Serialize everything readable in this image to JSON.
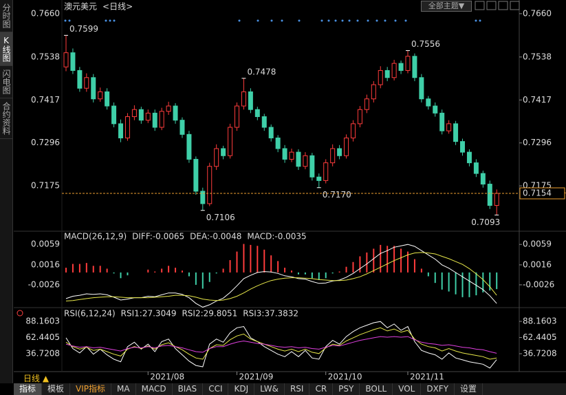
{
  "ui": {
    "sidebar": [
      "分时图",
      "K线图",
      "闪电图",
      "合约资料"
    ],
    "theme_button": "全部主题▼",
    "period_label": "日线 ▲",
    "tabs": [
      "指标",
      "模板",
      "VIP指标",
      "MA",
      "MACD",
      "BIAS",
      "CCI",
      "KDJ",
      "LW&",
      "RSI",
      "CR",
      "PSY",
      "BOLL",
      "VOL",
      "DXFY",
      "设置"
    ]
  },
  "chart_data": [
    {
      "type": "candlestick",
      "title": "澳元美元",
      "subtitle": "<日线>",
      "up_color": "#ff3c3c",
      "down_color": "#3fcfa8",
      "last_color": "#f0a030",
      "open": [
        0.751,
        0.755,
        0.75,
        0.745,
        0.748,
        0.742,
        0.744,
        0.74,
        0.735,
        0.731,
        0.737,
        0.739,
        0.736,
        0.738,
        0.734,
        0.7385,
        0.74,
        0.736,
        0.732,
        0.725,
        0.716,
        0.7125,
        0.723,
        0.728,
        0.726,
        0.734,
        0.74,
        0.744,
        0.739,
        0.737,
        0.734,
        0.731,
        0.728,
        0.725,
        0.727,
        0.723,
        0.726,
        0.72,
        0.719,
        0.724,
        0.728,
        0.726,
        0.731,
        0.735,
        0.739,
        0.742,
        0.746,
        0.75,
        0.748,
        0.752,
        0.75,
        0.754,
        0.748,
        0.742,
        0.74,
        0.738,
        0.733,
        0.735,
        0.73,
        0.727,
        0.724,
        0.721,
        0.718,
        0.712
      ],
      "high": [
        0.7599,
        0.7562,
        0.751,
        0.7492,
        0.749,
        0.7452,
        0.745,
        0.741,
        0.7362,
        0.738,
        0.7402,
        0.7398,
        0.739,
        0.739,
        0.7395,
        0.7412,
        0.7408,
        0.7368,
        0.733,
        0.7258,
        0.717,
        0.724,
        0.7292,
        0.7288,
        0.735,
        0.741,
        0.7478,
        0.745,
        0.7398,
        0.7378,
        0.7348,
        0.7318,
        0.729,
        0.728,
        0.7278,
        0.727,
        0.7268,
        0.721,
        0.725,
        0.7292,
        0.729,
        0.732,
        0.736,
        0.74,
        0.7432,
        0.747,
        0.7512,
        0.751,
        0.753,
        0.7528,
        0.7556,
        0.7548,
        0.749,
        0.7428,
        0.741,
        0.739,
        0.736,
        0.7358,
        0.7308,
        0.7278,
        0.725,
        0.7218,
        0.719,
        0.7165
      ],
      "low": [
        0.7498,
        0.749,
        0.744,
        0.744,
        0.741,
        0.7412,
        0.739,
        0.734,
        0.7298,
        0.7302,
        0.736,
        0.735,
        0.7352,
        0.733,
        0.7332,
        0.7375,
        0.735,
        0.731,
        0.724,
        0.715,
        0.7106,
        0.7118,
        0.722,
        0.725,
        0.7252,
        0.733,
        0.739,
        0.738,
        0.736,
        0.733,
        0.73,
        0.727,
        0.724,
        0.7242,
        0.722,
        0.7222,
        0.719,
        0.717,
        0.7182,
        0.723,
        0.725,
        0.7252,
        0.73,
        0.734,
        0.738,
        0.741,
        0.745,
        0.747,
        0.7472,
        0.749,
        0.7492,
        0.747,
        0.741,
        0.739,
        0.737,
        0.732,
        0.7322,
        0.729,
        0.726,
        0.723,
        0.72,
        0.717,
        0.711,
        0.7093
      ],
      "close": [
        0.755,
        0.75,
        0.745,
        0.748,
        0.742,
        0.744,
        0.74,
        0.735,
        0.731,
        0.737,
        0.739,
        0.736,
        0.738,
        0.734,
        0.7385,
        0.74,
        0.736,
        0.732,
        0.725,
        0.716,
        0.7125,
        0.723,
        0.728,
        0.726,
        0.734,
        0.74,
        0.744,
        0.739,
        0.737,
        0.734,
        0.731,
        0.728,
        0.725,
        0.727,
        0.723,
        0.726,
        0.72,
        0.719,
        0.724,
        0.728,
        0.726,
        0.731,
        0.735,
        0.739,
        0.742,
        0.746,
        0.75,
        0.748,
        0.752,
        0.75,
        0.754,
        0.748,
        0.742,
        0.74,
        0.738,
        0.733,
        0.735,
        0.73,
        0.727,
        0.724,
        0.721,
        0.718,
        0.712,
        0.7154
      ],
      "annotations": [
        {
          "index": 0,
          "at": "high",
          "label": "0.7599"
        },
        {
          "index": 26,
          "at": "high",
          "label": "0.7478"
        },
        {
          "index": 50,
          "at": "high",
          "label": "0.7556"
        },
        {
          "index": 20,
          "at": "low",
          "label": "0.7106"
        },
        {
          "index": 37,
          "at": "low",
          "label": "0.7170"
        },
        {
          "index": 63,
          "at": "low",
          "label": "0.7093"
        }
      ],
      "ylim": [
        0.7059,
        0.7683
      ],
      "yticks": [
        {
          "value": 0.766,
          "label": "0.7660"
        },
        0.7538,
        0.7417,
        0.7296,
        0.7175
      ]
    },
    {
      "type": "macd",
      "title": "MACD(26,12,9)",
      "ylim": [
        -0.0071,
        0.0081
      ],
      "yticks": [
        0.0059,
        0.0016,
        -0.0026
      ],
      "series": [
        {
          "name": "DIFF:-0.0065",
          "color": "#ffffff",
          "kind": "line",
          "values": [
            -0.0055,
            -0.005,
            -0.0048,
            -0.0045,
            -0.0046,
            -0.0045,
            -0.0047,
            -0.0052,
            -0.0058,
            -0.0056,
            -0.0053,
            -0.0053,
            -0.005,
            -0.0051,
            -0.0047,
            -0.0043,
            -0.0043,
            -0.0046,
            -0.0053,
            -0.0065,
            -0.0073,
            -0.0068,
            -0.006,
            -0.0054,
            -0.0042,
            -0.0028,
            -0.0013,
            -0.0006,
            0.0,
            0.0002,
            0.0001,
            -0.0002,
            -0.0007,
            -0.0009,
            -0.0013,
            -0.0014,
            -0.0019,
            -0.0023,
            -0.0022,
            -0.0018,
            -0.0016,
            -0.001,
            -0.0002,
            0.0008,
            0.0018,
            0.0029,
            0.004,
            0.0046,
            0.0053,
            0.0056,
            0.0059,
            0.0055,
            0.0046,
            0.0037,
            0.0028,
            0.0016,
            0.0009,
            0.0,
            -0.0009,
            -0.0018,
            -0.0027,
            -0.0036,
            -0.0049,
            -0.0065
          ]
        },
        {
          "name": "DEA:-0.0048",
          "color": "#e8e84a",
          "kind": "line",
          "values": [
            -0.006,
            -0.0059,
            -0.0057,
            -0.0055,
            -0.0053,
            -0.0052,
            -0.0051,
            -0.0051,
            -0.0052,
            -0.0053,
            -0.0053,
            -0.0053,
            -0.0053,
            -0.0052,
            -0.0051,
            -0.005,
            -0.0048,
            -0.0048,
            -0.0049,
            -0.0052,
            -0.0056,
            -0.0058,
            -0.0059,
            -0.0058,
            -0.0055,
            -0.005,
            -0.0043,
            -0.0035,
            -0.0028,
            -0.0022,
            -0.0017,
            -0.0014,
            -0.0012,
            -0.0011,
            -0.0011,
            -0.0012,
            -0.0013,
            -0.0015,
            -0.0016,
            -0.0017,
            -0.0017,
            -0.0016,
            -0.0013,
            -0.0009,
            -0.0003,
            0.0004,
            0.0011,
            0.0018,
            0.0025,
            0.0031,
            0.0037,
            0.0041,
            0.0042,
            0.0041,
            0.0039,
            0.0034,
            0.0029,
            0.0023,
            0.0017,
            0.0008,
            -0.0003,
            -0.0015,
            -0.003,
            -0.0048
          ]
        },
        {
          "name": "MACD:-0.0035",
          "color": "#e040e0",
          "kind": "bar",
          "up_color": "#ff3c3c",
          "down_color": "#3fcfa8",
          "values": [
            0.001,
            0.0018,
            0.0018,
            0.002,
            0.0014,
            0.0014,
            0.0008,
            -0.0002,
            -0.0012,
            -0.0006,
            0.0,
            0.0,
            0.0006,
            0.0002,
            0.0008,
            0.0014,
            0.001,
            0.0004,
            -0.0008,
            -0.0026,
            -0.0034,
            -0.002,
            -0.0002,
            0.0008,
            0.0026,
            0.0044,
            0.006,
            0.0058,
            0.0056,
            0.0048,
            0.0036,
            0.0024,
            0.001,
            0.0004,
            -0.0004,
            -0.0004,
            -0.0012,
            -0.0016,
            -0.0012,
            -0.0002,
            0.0002,
            0.0012,
            0.0022,
            0.0034,
            0.0042,
            0.005,
            0.0058,
            0.0056,
            0.0056,
            0.005,
            0.0044,
            0.0028,
            0.0008,
            -0.0008,
            -0.0022,
            -0.0036,
            -0.004,
            -0.0046,
            -0.0052,
            -0.0052,
            -0.0048,
            -0.0042,
            -0.0038,
            -0.0035
          ]
        }
      ]
    },
    {
      "type": "line",
      "title": "RSI(6,12,24)",
      "ylim": [
        8.3,
        101.3
      ],
      "yticks": [
        88.1603,
        62.4405,
        36.7208
      ],
      "xticks": [
        {
          "value": 12,
          "label": "2021/08"
        },
        {
          "value": 25,
          "label": "2021/09"
        },
        {
          "value": 38,
          "label": "2021/10"
        },
        {
          "value": 50,
          "label": "2021/11"
        }
      ],
      "series": [
        {
          "name": "RSI1:27.3049",
          "color": "#ffffff",
          "values": [
            62,
            45,
            38,
            48,
            36,
            44,
            35,
            28,
            24,
            48,
            55,
            44,
            52,
            40,
            56,
            60,
            45,
            35,
            25,
            18,
            16,
            52,
            60,
            55,
            70,
            78,
            80,
            62,
            56,
            48,
            42,
            36,
            32,
            40,
            32,
            42,
            30,
            28,
            48,
            58,
            52,
            64,
            72,
            78,
            82,
            86,
            88,
            78,
            84,
            74,
            80,
            56,
            42,
            38,
            35,
            28,
            38,
            30,
            27,
            24,
            22,
            20,
            14,
            27.3049
          ]
        },
        {
          "name": "RSI2:29.8051",
          "color": "#e8e84a",
          "values": [
            55,
            48,
            44,
            47,
            42,
            44,
            40,
            36,
            33,
            44,
            48,
            45,
            49,
            44,
            51,
            54,
            48,
            43,
            36,
            30,
            28,
            45,
            51,
            50,
            59,
            65,
            68,
            60,
            56,
            52,
            48,
            44,
            41,
            44,
            40,
            44,
            39,
            37,
            46,
            52,
            50,
            57,
            62,
            67,
            71,
            75,
            78,
            73,
            76,
            71,
            74,
            60,
            52,
            48,
            46,
            41,
            45,
            41,
            38,
            36,
            34,
            32,
            28,
            29.8051
          ]
        },
        {
          "name": "RSI3:37.3832",
          "color": "#e040e0",
          "values": [
            52,
            49,
            47,
            48,
            46,
            47,
            45,
            43,
            41,
            45,
            47,
            46,
            48,
            46,
            49,
            50,
            48,
            46,
            43,
            40,
            39,
            45,
            48,
            48,
            52,
            55,
            57,
            55,
            53,
            52,
            50,
            48,
            47,
            48,
            46,
            47,
            45,
            44,
            47,
            50,
            49,
            52,
            55,
            58,
            60,
            62,
            64,
            63,
            64,
            63,
            64,
            59,
            55,
            53,
            52,
            50,
            51,
            49,
            47,
            46,
            44,
            43,
            40,
            37.3832
          ]
        }
      ]
    }
  ]
}
